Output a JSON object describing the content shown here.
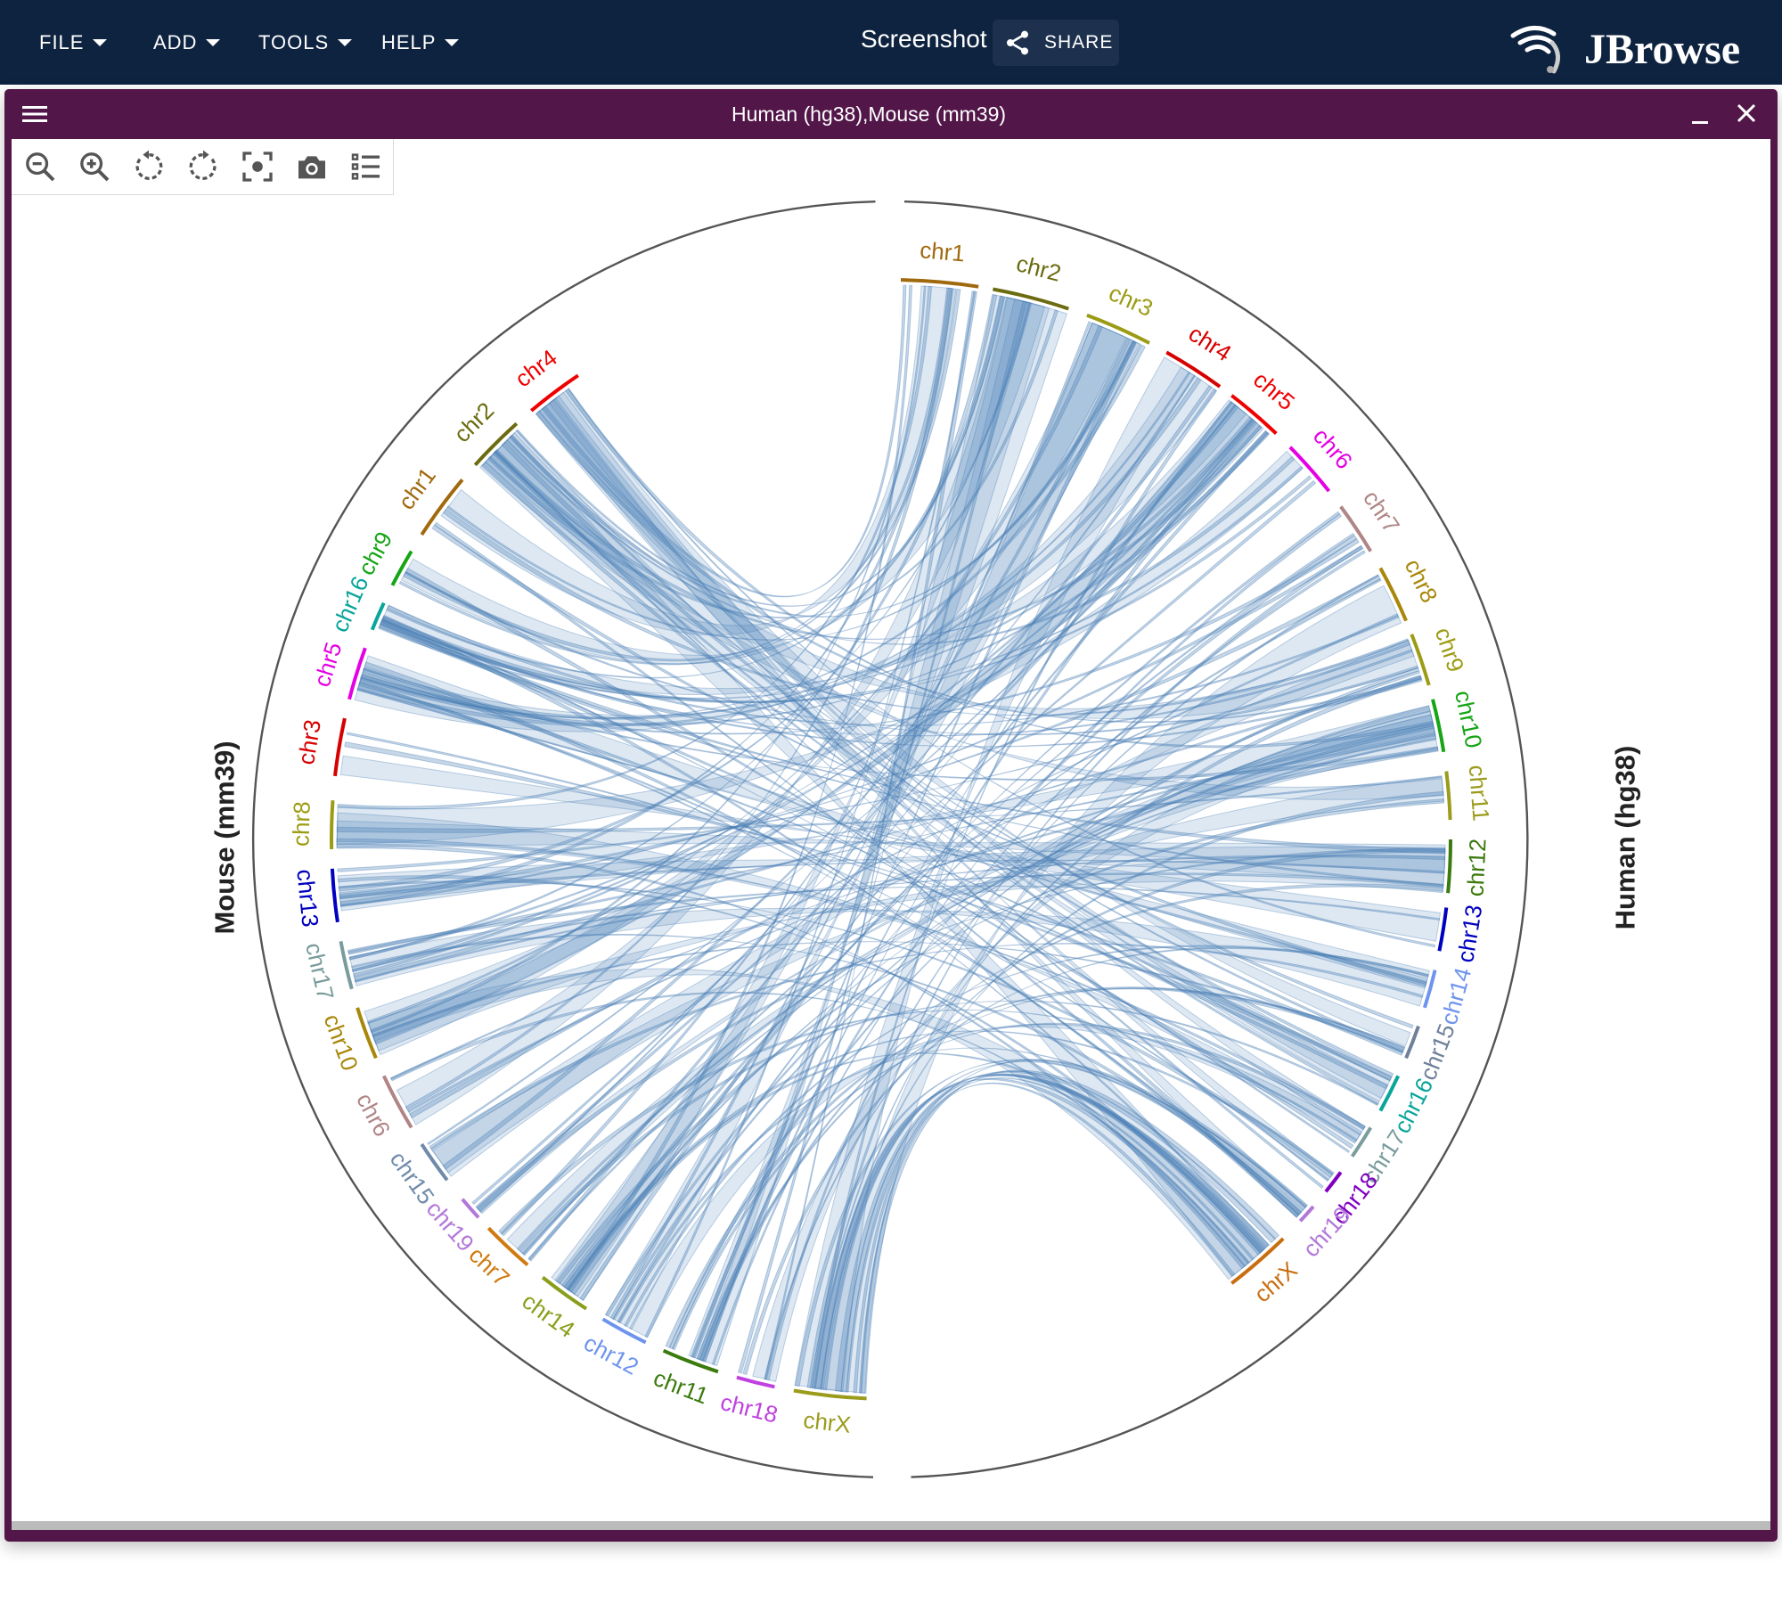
{
  "appbar": {
    "menus": [
      "FILE",
      "ADD",
      "TOOLS",
      "HELP"
    ],
    "session_name": "Screenshot",
    "share_label": "SHARE",
    "logo_text": "JBrowse",
    "logo_icon": "jbrowse-logo-icon"
  },
  "view": {
    "title": "Human (hg38),Mouse (mm39)",
    "menu_icon": "hamburger-icon",
    "minimize_icon": "minimize-icon",
    "close_icon": "close-icon",
    "toolbar": [
      "zoom-out-icon",
      "zoom-in-icon",
      "rotate-counterclockwise-icon",
      "rotate-clockwise-icon",
      "fit-view-icon",
      "camera-icon",
      "track-list-icon"
    ]
  },
  "chart_data": {
    "type": "circular-synteny",
    "assemblies": [
      {
        "name": "Human (hg38)",
        "side": "right",
        "chromosomes": [
          {
            "name": "chr1",
            "color": "#a0690d"
          },
          {
            "name": "chr2",
            "color": "#6b6b10"
          },
          {
            "name": "chr3",
            "color": "#9b9b14"
          },
          {
            "name": "chr4",
            "color": "#d60000"
          },
          {
            "name": "chr5",
            "color": "#f00000"
          },
          {
            "name": "chr6",
            "color": "#e400e4"
          },
          {
            "name": "chr7",
            "color": "#b08585"
          },
          {
            "name": "chr8",
            "color": "#a8870a"
          },
          {
            "name": "chr9",
            "color": "#9c9c14"
          },
          {
            "name": "chr10",
            "color": "#15a515"
          },
          {
            "name": "chr11",
            "color": "#9b9b1c"
          },
          {
            "name": "chr12",
            "color": "#3b7a0e"
          },
          {
            "name": "chr13",
            "color": "#0000c0"
          },
          {
            "name": "chr14",
            "color": "#6e94ee"
          },
          {
            "name": "chr15",
            "color": "#6f809a"
          },
          {
            "name": "chr16",
            "color": "#09a59b"
          },
          {
            "name": "chr17",
            "color": "#7a9c9c"
          },
          {
            "name": "chr18",
            "color": "#8000c0"
          },
          {
            "name": "chr19",
            "color": "#b278d8"
          },
          {
            "name": "chrX",
            "color": "#c96e10"
          }
        ]
      },
      {
        "name": "Mouse (mm39)",
        "side": "left",
        "chromosomes": [
          {
            "name": "chrX",
            "color": "#9b9b1c"
          },
          {
            "name": "chr18",
            "color": "#c040e0"
          },
          {
            "name": "chr11",
            "color": "#3b7a0e"
          },
          {
            "name": "chr12",
            "color": "#6e94ee"
          },
          {
            "name": "chr14",
            "color": "#8a9e1c"
          },
          {
            "name": "chr7",
            "color": "#d07a10"
          },
          {
            "name": "chr19",
            "color": "#b278d8"
          },
          {
            "name": "chr15",
            "color": "#6f8aaa"
          },
          {
            "name": "chr6",
            "color": "#b08585"
          },
          {
            "name": "chr10",
            "color": "#a8870a"
          },
          {
            "name": "chr17",
            "color": "#7a9c9c"
          },
          {
            "name": "chr13",
            "color": "#0000c0"
          },
          {
            "name": "chr8",
            "color": "#9c9c14"
          },
          {
            "name": "chr3",
            "color": "#d60000"
          },
          {
            "name": "chr5",
            "color": "#e400e4"
          },
          {
            "name": "chr16",
            "color": "#09a59b"
          },
          {
            "name": "chr9",
            "color": "#15a515"
          },
          {
            "name": "chr1",
            "color": "#a0690d"
          },
          {
            "name": "chr2",
            "color": "#6b6b10"
          },
          {
            "name": "chr4",
            "color": "#f00000"
          }
        ]
      }
    ],
    "link_color": "#4a7fb5"
  }
}
